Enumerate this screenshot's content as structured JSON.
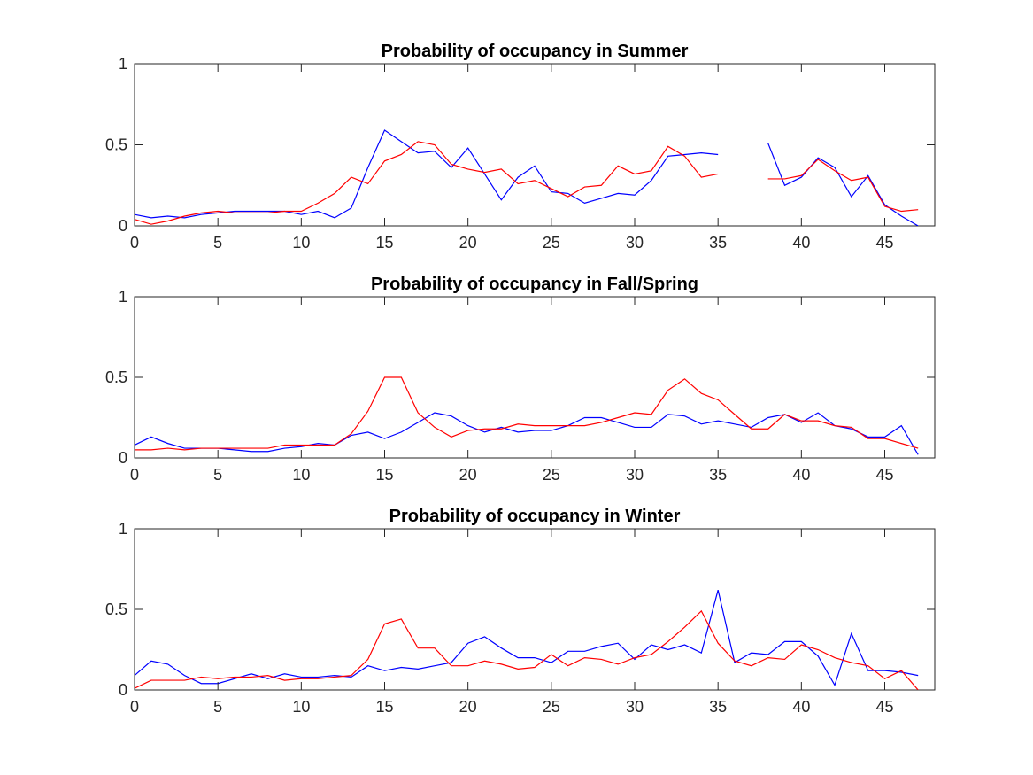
{
  "chart_data": [
    {
      "type": "line",
      "title": "Probability of occupancy in Summer",
      "xlabel": "",
      "ylabel": "",
      "xlim": [
        0,
        48
      ],
      "ylim": [
        0,
        1
      ],
      "xticks": [
        0,
        5,
        10,
        15,
        20,
        25,
        30,
        35,
        40,
        45
      ],
      "yticks": [
        0,
        0.5,
        1
      ],
      "grid": false,
      "series": [
        {
          "color": "#0000ff",
          "x": [
            0,
            1,
            2,
            3,
            4,
            5,
            6,
            7,
            8,
            9,
            10,
            11,
            12,
            13,
            14,
            15,
            16,
            17,
            18,
            19,
            20,
            21,
            22,
            23,
            24,
            25,
            26,
            27,
            28,
            29,
            30,
            31,
            32,
            33,
            34,
            35,
            36,
            37,
            38,
            39,
            40,
            41,
            42,
            43,
            44,
            45,
            46,
            47
          ],
          "values": [
            0.07,
            0.05,
            0.06,
            0.05,
            0.07,
            0.08,
            0.09,
            0.09,
            0.09,
            0.09,
            0.07,
            0.09,
            0.05,
            0.11,
            0.36,
            0.59,
            0.52,
            0.45,
            0.46,
            0.36,
            0.48,
            0.32,
            0.16,
            0.3,
            0.37,
            0.21,
            0.2,
            0.14,
            0.17,
            0.2,
            0.19,
            0.28,
            0.43,
            0.44,
            0.45,
            0.44,
            null,
            null,
            0.51,
            0.25,
            0.3,
            0.42,
            0.36,
            0.18,
            0.31,
            0.13,
            0.06,
            0.0
          ]
        },
        {
          "color": "#ff0000",
          "x": [
            0,
            1,
            2,
            3,
            4,
            5,
            6,
            7,
            8,
            9,
            10,
            11,
            12,
            13,
            14,
            15,
            16,
            17,
            18,
            19,
            20,
            21,
            22,
            23,
            24,
            25,
            26,
            27,
            28,
            29,
            30,
            31,
            32,
            33,
            34,
            35,
            36,
            37,
            38,
            39,
            40,
            41,
            42,
            43,
            44,
            45,
            46,
            47
          ],
          "values": [
            0.04,
            0.01,
            0.03,
            0.06,
            0.08,
            0.09,
            0.08,
            0.08,
            0.08,
            0.09,
            0.09,
            0.14,
            0.2,
            0.3,
            0.26,
            0.4,
            0.44,
            0.52,
            0.5,
            0.38,
            0.35,
            0.33,
            0.35,
            0.26,
            0.28,
            0.23,
            0.18,
            0.24,
            0.25,
            0.37,
            0.32,
            0.34,
            0.49,
            0.43,
            0.3,
            0.32,
            null,
            null,
            0.29,
            0.29,
            0.31,
            0.41,
            0.34,
            0.28,
            0.3,
            0.12,
            0.09,
            0.1
          ]
        }
      ]
    },
    {
      "type": "line",
      "title": "Probability of occupancy in Fall/Spring",
      "xlabel": "",
      "ylabel": "",
      "xlim": [
        0,
        48
      ],
      "ylim": [
        0,
        1
      ],
      "xticks": [
        0,
        5,
        10,
        15,
        20,
        25,
        30,
        35,
        40,
        45
      ],
      "yticks": [
        0,
        0.5,
        1
      ],
      "grid": false,
      "series": [
        {
          "color": "#0000ff",
          "x": [
            0,
            1,
            2,
            3,
            4,
            5,
            6,
            7,
            8,
            9,
            10,
            11,
            12,
            13,
            14,
            15,
            16,
            17,
            18,
            19,
            20,
            21,
            22,
            23,
            24,
            25,
            26,
            27,
            28,
            29,
            30,
            31,
            32,
            33,
            34,
            35,
            36,
            37,
            38,
            39,
            40,
            41,
            42,
            43,
            44,
            45,
            46,
            47
          ],
          "values": [
            0.08,
            0.13,
            0.09,
            0.06,
            0.06,
            0.06,
            0.05,
            0.04,
            0.04,
            0.06,
            0.07,
            0.09,
            0.08,
            0.14,
            0.16,
            0.12,
            0.16,
            0.22,
            0.28,
            0.26,
            0.2,
            0.16,
            0.19,
            0.16,
            0.17,
            0.17,
            0.2,
            0.25,
            0.25,
            0.22,
            0.19,
            0.19,
            0.27,
            0.26,
            0.21,
            0.23,
            0.21,
            0.19,
            0.25,
            0.27,
            0.22,
            0.28,
            0.2,
            0.18,
            0.13,
            0.13,
            0.2,
            0.02
          ]
        },
        {
          "color": "#ff0000",
          "x": [
            0,
            1,
            2,
            3,
            4,
            5,
            6,
            7,
            8,
            9,
            10,
            11,
            12,
            13,
            14,
            15,
            16,
            17,
            18,
            19,
            20,
            21,
            22,
            23,
            24,
            25,
            26,
            27,
            28,
            29,
            30,
            31,
            32,
            33,
            34,
            35,
            36,
            37,
            38,
            39,
            40,
            41,
            42,
            43,
            44,
            45,
            46,
            47
          ],
          "values": [
            0.05,
            0.05,
            0.06,
            0.05,
            0.06,
            0.06,
            0.06,
            0.06,
            0.06,
            0.08,
            0.08,
            0.08,
            0.08,
            0.15,
            0.29,
            0.5,
            0.5,
            0.28,
            0.19,
            0.13,
            0.17,
            0.18,
            0.18,
            0.21,
            0.2,
            0.2,
            0.2,
            0.2,
            0.22,
            0.25,
            0.28,
            0.27,
            0.42,
            0.49,
            0.4,
            0.36,
            0.27,
            0.18,
            0.18,
            0.27,
            0.23,
            0.23,
            0.2,
            0.19,
            0.12,
            0.12,
            0.09,
            0.06
          ]
        }
      ]
    },
    {
      "type": "line",
      "title": "Probability of occupancy in Winter",
      "xlabel": "",
      "ylabel": "",
      "xlim": [
        0,
        48
      ],
      "ylim": [
        0,
        1
      ],
      "xticks": [
        0,
        5,
        10,
        15,
        20,
        25,
        30,
        35,
        40,
        45
      ],
      "yticks": [
        0,
        0.5,
        1
      ],
      "grid": false,
      "series": [
        {
          "color": "#0000ff",
          "x": [
            0,
            1,
            2,
            3,
            4,
            5,
            6,
            7,
            8,
            9,
            10,
            11,
            12,
            13,
            14,
            15,
            16,
            17,
            18,
            19,
            20,
            21,
            22,
            23,
            24,
            25,
            26,
            27,
            28,
            29,
            30,
            31,
            32,
            33,
            34,
            35,
            36,
            37,
            38,
            39,
            40,
            41,
            42,
            43,
            44,
            45,
            46,
            47
          ],
          "values": [
            0.09,
            0.18,
            0.16,
            0.09,
            0.04,
            0.04,
            0.07,
            0.1,
            0.07,
            0.1,
            0.08,
            0.08,
            0.09,
            0.08,
            0.15,
            0.12,
            0.14,
            0.13,
            0.15,
            0.17,
            0.29,
            0.33,
            0.26,
            0.2,
            0.2,
            0.17,
            0.24,
            0.24,
            0.27,
            0.29,
            0.19,
            0.28,
            0.25,
            0.28,
            0.23,
            0.62,
            0.17,
            0.23,
            0.22,
            0.3,
            0.3,
            0.21,
            0.03,
            0.35,
            0.12,
            0.12,
            0.11,
            0.09
          ]
        },
        {
          "color": "#ff0000",
          "x": [
            0,
            1,
            2,
            3,
            4,
            5,
            6,
            7,
            8,
            9,
            10,
            11,
            12,
            13,
            14,
            15,
            16,
            17,
            18,
            19,
            20,
            21,
            22,
            23,
            24,
            25,
            26,
            27,
            28,
            29,
            30,
            31,
            32,
            33,
            34,
            35,
            36,
            37,
            38,
            39,
            40,
            41,
            42,
            43,
            44,
            45,
            46,
            47
          ],
          "values": [
            0.01,
            0.06,
            0.06,
            0.06,
            0.08,
            0.07,
            0.08,
            0.08,
            0.09,
            0.06,
            0.07,
            0.07,
            0.08,
            0.09,
            0.19,
            0.41,
            0.44,
            0.26,
            0.26,
            0.15,
            0.15,
            0.18,
            0.16,
            0.13,
            0.14,
            0.22,
            0.15,
            0.2,
            0.19,
            0.16,
            0.2,
            0.22,
            0.3,
            0.39,
            0.49,
            0.29,
            0.18,
            0.15,
            0.2,
            0.19,
            0.28,
            0.25,
            0.2,
            0.17,
            0.15,
            0.07,
            0.12,
            0.0
          ]
        }
      ]
    }
  ]
}
